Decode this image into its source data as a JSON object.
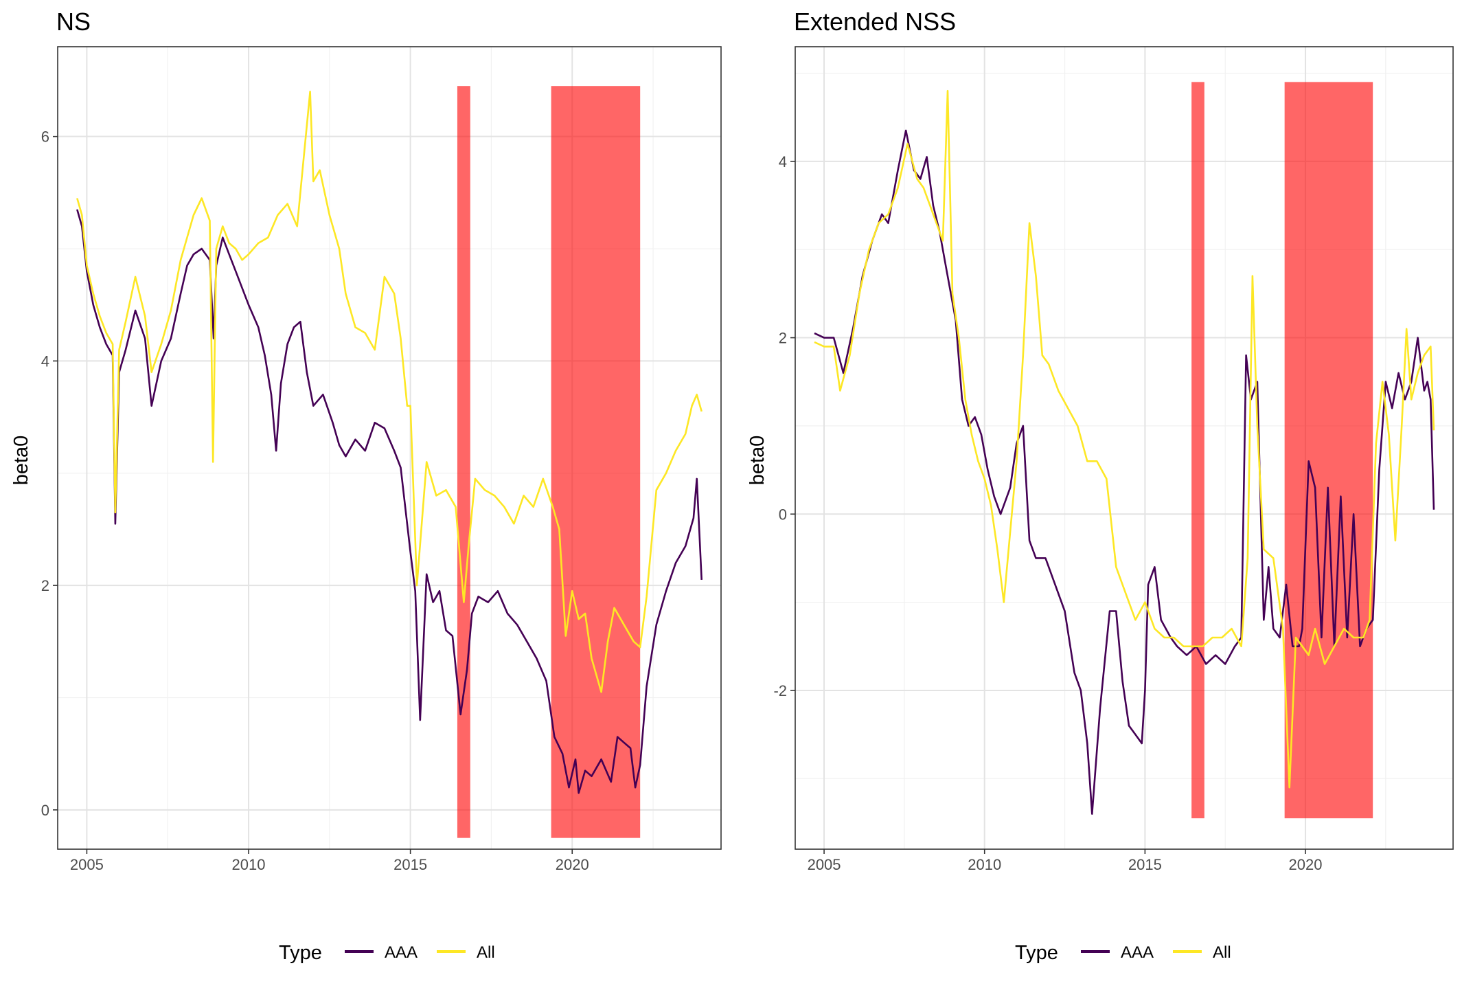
{
  "colors": {
    "aaa": "#440154",
    "all": "#fde725",
    "shade": "#ff0000",
    "grid_major": "#e3e3e3",
    "grid_minor": "#f1f1f1",
    "frame": "#333333"
  },
  "legend": {
    "title": "Type",
    "entries": [
      "AAA",
      "All"
    ]
  },
  "chart_data": [
    {
      "type": "line",
      "title": "NS",
      "xlabel": "",
      "ylabel": "beta0",
      "xlim": [
        2004.1,
        2024.6
      ],
      "ylim": [
        -0.35,
        6.8
      ],
      "x_ticks": [
        2005,
        2010,
        2015,
        2020
      ],
      "x_tick_labels": [
        "2005",
        "2010",
        "2015",
        "2020"
      ],
      "y_ticks": [
        0,
        2,
        4,
        6
      ],
      "y_tick_labels": [
        "0",
        "2",
        "4",
        "6"
      ],
      "grid": true,
      "shaded_periods": [
        {
          "start": 2016.45,
          "end": 2016.85,
          "ymin": -0.25,
          "ymax": 6.45
        },
        {
          "start": 2019.35,
          "end": 2022.1,
          "ymin": -0.25,
          "ymax": 6.45
        }
      ],
      "series": [
        {
          "name": "AAA",
          "x": [
            2004.7,
            2004.85,
            2005.0,
            2005.2,
            2005.4,
            2005.6,
            2005.8,
            2005.88,
            2006.0,
            2006.2,
            2006.5,
            2006.8,
            2007.0,
            2007.3,
            2007.6,
            2007.9,
            2008.1,
            2008.3,
            2008.55,
            2008.8,
            2008.92,
            2009.0,
            2009.2,
            2009.4,
            2009.6,
            2009.8,
            2010.0,
            2010.3,
            2010.5,
            2010.7,
            2010.85,
            2011.0,
            2011.2,
            2011.4,
            2011.6,
            2011.8,
            2012.0,
            2012.3,
            2012.6,
            2012.8,
            2013.0,
            2013.3,
            2013.6,
            2013.9,
            2014.2,
            2014.5,
            2014.7,
            2014.9,
            2015.0,
            2015.15,
            2015.3,
            2015.5,
            2015.7,
            2015.9,
            2016.1,
            2016.3,
            2016.55,
            2016.75,
            2016.9,
            2017.1,
            2017.4,
            2017.7,
            2018.0,
            2018.3,
            2018.6,
            2018.9,
            2019.2,
            2019.45,
            2019.7,
            2019.9,
            2020.1,
            2020.2,
            2020.4,
            2020.6,
            2020.9,
            2021.2,
            2021.4,
            2021.6,
            2021.8,
            2021.95,
            2022.1,
            2022.3,
            2022.6,
            2022.9,
            2023.2,
            2023.5,
            2023.75,
            2023.85,
            2024.0
          ],
          "values": [
            5.35,
            5.2,
            4.8,
            4.5,
            4.3,
            4.15,
            4.05,
            2.55,
            3.9,
            4.1,
            4.45,
            4.2,
            3.6,
            4.0,
            4.2,
            4.6,
            4.85,
            4.95,
            5.0,
            4.9,
            4.2,
            4.85,
            5.1,
            4.95,
            4.8,
            4.65,
            4.5,
            4.3,
            4.05,
            3.7,
            3.2,
            3.8,
            4.15,
            4.3,
            4.35,
            3.9,
            3.6,
            3.7,
            3.45,
            3.25,
            3.15,
            3.3,
            3.2,
            3.45,
            3.4,
            3.2,
            3.05,
            2.55,
            2.3,
            1.95,
            0.8,
            2.1,
            1.85,
            1.95,
            1.6,
            1.55,
            0.85,
            1.25,
            1.75,
            1.9,
            1.85,
            1.95,
            1.75,
            1.65,
            1.5,
            1.35,
            1.15,
            0.65,
            0.5,
            0.2,
            0.45,
            0.15,
            0.35,
            0.3,
            0.45,
            0.25,
            0.65,
            0.6,
            0.55,
            0.2,
            0.4,
            1.1,
            1.65,
            1.95,
            2.2,
            2.35,
            2.6,
            2.95,
            2.05
          ]
        },
        {
          "name": "All",
          "x": [
            2004.7,
            2004.85,
            2005.0,
            2005.2,
            2005.4,
            2005.6,
            2005.8,
            2005.88,
            2006.0,
            2006.2,
            2006.5,
            2006.8,
            2007.0,
            2007.3,
            2007.6,
            2007.9,
            2008.1,
            2008.3,
            2008.55,
            2008.8,
            2008.9,
            2009.0,
            2009.2,
            2009.4,
            2009.6,
            2009.8,
            2010.0,
            2010.3,
            2010.6,
            2010.9,
            2011.2,
            2011.5,
            2011.7,
            2011.9,
            2012.0,
            2012.2,
            2012.5,
            2012.8,
            2013.0,
            2013.3,
            2013.6,
            2013.9,
            2014.2,
            2014.5,
            2014.7,
            2014.9,
            2015.0,
            2015.2,
            2015.5,
            2015.8,
            2016.1,
            2016.4,
            2016.65,
            2016.8,
            2017.0,
            2017.3,
            2017.6,
            2017.9,
            2018.2,
            2018.5,
            2018.8,
            2019.1,
            2019.4,
            2019.6,
            2019.8,
            2020.0,
            2020.2,
            2020.4,
            2020.6,
            2020.9,
            2021.1,
            2021.3,
            2021.6,
            2021.9,
            2022.1,
            2022.3,
            2022.6,
            2022.9,
            2023.2,
            2023.5,
            2023.7,
            2023.85,
            2024.0
          ],
          "values": [
            5.45,
            5.3,
            4.85,
            4.6,
            4.4,
            4.25,
            4.15,
            2.65,
            4.1,
            4.35,
            4.75,
            4.4,
            3.9,
            4.15,
            4.45,
            4.9,
            5.1,
            5.3,
            5.45,
            5.25,
            3.1,
            5.0,
            5.2,
            5.05,
            5.0,
            4.9,
            4.95,
            5.05,
            5.1,
            5.3,
            5.4,
            5.2,
            5.8,
            6.4,
            5.6,
            5.7,
            5.3,
            5.0,
            4.6,
            4.3,
            4.25,
            4.1,
            4.75,
            4.6,
            4.2,
            3.6,
            3.6,
            2.0,
            3.1,
            2.8,
            2.85,
            2.7,
            1.85,
            2.35,
            2.95,
            2.85,
            2.8,
            2.7,
            2.55,
            2.8,
            2.7,
            2.95,
            2.7,
            2.5,
            1.55,
            1.95,
            1.7,
            1.75,
            1.35,
            1.05,
            1.5,
            1.8,
            1.65,
            1.5,
            1.45,
            1.9,
            2.85,
            3.0,
            3.2,
            3.35,
            3.6,
            3.7,
            3.55
          ]
        }
      ]
    },
    {
      "type": "line",
      "title": "Extended NSS",
      "xlabel": "",
      "ylabel": "beta0",
      "xlim": [
        2004.1,
        2024.6
      ],
      "ylim": [
        -3.8,
        5.3
      ],
      "x_ticks": [
        2005,
        2010,
        2015,
        2020
      ],
      "x_tick_labels": [
        "2005",
        "2010",
        "2015",
        "2020"
      ],
      "y_ticks": [
        -2,
        0,
        2,
        4
      ],
      "y_tick_labels": [
        "-2",
        "0",
        "2",
        "4"
      ],
      "grid": true,
      "shaded_periods": [
        {
          "start": 2016.45,
          "end": 2016.85,
          "ymin": -3.45,
          "ymax": 4.9
        },
        {
          "start": 2019.35,
          "end": 2022.1,
          "ymin": -3.45,
          "ymax": 4.9
        }
      ],
      "series": [
        {
          "name": "AAA",
          "x": [
            2004.7,
            2005.0,
            2005.3,
            2005.6,
            2005.9,
            2006.2,
            2006.5,
            2006.8,
            2007.0,
            2007.3,
            2007.55,
            2007.8,
            2008.0,
            2008.2,
            2008.4,
            2008.6,
            2008.8,
            2009.0,
            2009.1,
            2009.3,
            2009.5,
            2009.7,
            2009.9,
            2010.1,
            2010.3,
            2010.5,
            2010.8,
            2011.0,
            2011.2,
            2011.4,
            2011.6,
            2011.9,
            2012.2,
            2012.5,
            2012.8,
            2013.0,
            2013.2,
            2013.35,
            2013.6,
            2013.9,
            2014.1,
            2014.3,
            2014.5,
            2014.7,
            2014.9,
            2015.0,
            2015.1,
            2015.3,
            2015.5,
            2015.8,
            2016.0,
            2016.3,
            2016.6,
            2016.9,
            2017.2,
            2017.5,
            2017.8,
            2018.0,
            2018.15,
            2018.3,
            2018.5,
            2018.7,
            2018.85,
            2019.0,
            2019.2,
            2019.4,
            2019.6,
            2019.8,
            2019.9,
            2020.1,
            2020.3,
            2020.5,
            2020.7,
            2020.9,
            2021.1,
            2021.3,
            2021.5,
            2021.7,
            2021.9,
            2022.1,
            2022.3,
            2022.5,
            2022.7,
            2022.9,
            2023.1,
            2023.3,
            2023.5,
            2023.7,
            2023.8,
            2023.9,
            2024.0
          ],
          "values": [
            2.05,
            2.0,
            2.0,
            1.6,
            2.1,
            2.7,
            3.1,
            3.4,
            3.3,
            3.9,
            4.35,
            3.9,
            3.8,
            4.05,
            3.5,
            3.2,
            2.8,
            2.4,
            2.2,
            1.3,
            1.0,
            1.1,
            0.9,
            0.5,
            0.2,
            0.0,
            0.3,
            0.8,
            1.0,
            -0.3,
            -0.5,
            -0.5,
            -0.8,
            -1.1,
            -1.8,
            -2.0,
            -2.6,
            -3.4,
            -2.2,
            -1.1,
            -1.1,
            -1.9,
            -2.4,
            -2.5,
            -2.6,
            -2.0,
            -0.8,
            -0.6,
            -1.2,
            -1.4,
            -1.5,
            -1.6,
            -1.5,
            -1.7,
            -1.6,
            -1.7,
            -1.5,
            -1.4,
            1.8,
            1.3,
            1.5,
            -1.2,
            -0.6,
            -1.3,
            -1.4,
            -0.8,
            -1.5,
            -1.5,
            -1.3,
            0.6,
            0.3,
            -1.4,
            0.3,
            -1.5,
            0.2,
            -1.4,
            0.0,
            -1.5,
            -1.3,
            -1.2,
            0.5,
            1.5,
            1.2,
            1.6,
            1.3,
            1.5,
            2.0,
            1.4,
            1.5,
            1.3,
            0.05
          ]
        },
        {
          "name": "All",
          "x": [
            2004.7,
            2005.0,
            2005.3,
            2005.5,
            2005.8,
            2006.1,
            2006.4,
            2006.7,
            2007.0,
            2007.3,
            2007.6,
            2007.9,
            2008.1,
            2008.3,
            2008.5,
            2008.7,
            2008.85,
            2009.0,
            2009.2,
            2009.4,
            2009.6,
            2009.8,
            2010.0,
            2010.2,
            2010.4,
            2010.6,
            2010.8,
            2011.0,
            2011.2,
            2011.4,
            2011.6,
            2011.8,
            2012.0,
            2012.3,
            2012.6,
            2012.9,
            2013.2,
            2013.5,
            2013.8,
            2014.1,
            2014.4,
            2014.7,
            2015.0,
            2015.3,
            2015.6,
            2015.9,
            2016.2,
            2016.5,
            2016.8,
            2017.1,
            2017.4,
            2017.7,
            2018.0,
            2018.2,
            2018.35,
            2018.5,
            2018.7,
            2019.0,
            2019.3,
            2019.5,
            2019.7,
            2019.9,
            2020.1,
            2020.3,
            2020.6,
            2020.9,
            2021.2,
            2021.5,
            2021.8,
            2022.0,
            2022.2,
            2022.4,
            2022.6,
            2022.8,
            2023.0,
            2023.15,
            2023.3,
            2023.5,
            2023.7,
            2023.9,
            2024.0
          ],
          "values": [
            1.95,
            1.9,
            1.9,
            1.4,
            1.8,
            2.5,
            3.0,
            3.3,
            3.4,
            3.7,
            4.2,
            3.8,
            3.7,
            3.5,
            3.3,
            3.1,
            4.8,
            2.5,
            2.0,
            1.3,
            0.9,
            0.6,
            0.4,
            0.1,
            -0.4,
            -1.0,
            -0.2,
            0.6,
            1.8,
            3.3,
            2.7,
            1.8,
            1.7,
            1.4,
            1.2,
            1.0,
            0.6,
            0.6,
            0.4,
            -0.6,
            -0.9,
            -1.2,
            -1.0,
            -1.3,
            -1.4,
            -1.4,
            -1.5,
            -1.5,
            -1.5,
            -1.4,
            -1.4,
            -1.3,
            -1.5,
            -0.5,
            2.7,
            1.0,
            -0.4,
            -0.5,
            -1.3,
            -3.1,
            -1.4,
            -1.5,
            -1.6,
            -1.3,
            -1.7,
            -1.5,
            -1.3,
            -1.4,
            -1.4,
            -1.2,
            0.8,
            1.5,
            0.9,
            -0.3,
            1.0,
            2.1,
            1.3,
            1.6,
            1.8,
            1.9,
            0.95
          ]
        }
      ]
    }
  ]
}
